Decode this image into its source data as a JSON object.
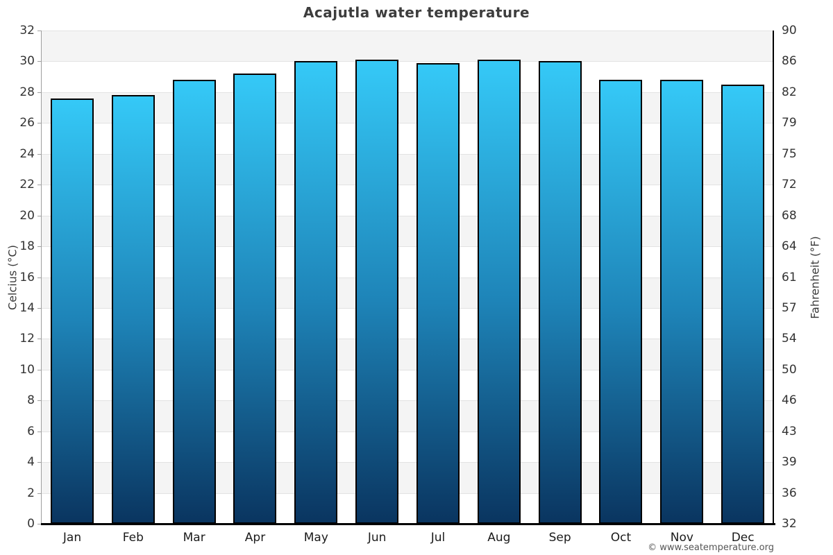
{
  "footer": "© www.seatemperature.org",
  "chart_data": {
    "type": "bar",
    "title": "Acajutla water temperature",
    "categories": [
      "Jan",
      "Feb",
      "Mar",
      "Apr",
      "May",
      "Jun",
      "Jul",
      "Aug",
      "Sep",
      "Oct",
      "Nov",
      "Dec"
    ],
    "values": [
      27.6,
      27.8,
      28.8,
      29.2,
      30.0,
      30.1,
      29.9,
      30.1,
      30.0,
      28.8,
      28.8,
      28.5
    ],
    "unit": "°C",
    "xlabel": "",
    "ylabel_left": "Celcius (°C)",
    "ylabel_right": "Fahrenheit (°F)",
    "ylim": [
      0,
      32
    ],
    "y_tick_step": 2,
    "y_ticks_celsius": [
      0,
      2,
      4,
      6,
      8,
      10,
      12,
      14,
      16,
      18,
      20,
      22,
      24,
      26,
      28,
      30,
      32
    ],
    "y_ticks_fahrenheit": [
      "32",
      "36",
      "39",
      "43",
      "46",
      "50",
      "54",
      "57",
      "61",
      "64",
      "68",
      "72",
      "75",
      "79",
      "82",
      "86",
      "90"
    ],
    "legend_position": "none",
    "grid": "alternating horizontal bands every 2°C, light gray band at 30–32",
    "colors": {
      "bar_gradient_top": "#35c9f7",
      "bar_gradient_mid": "#1e84b8",
      "bar_gradient_bottom": "#0a3560",
      "bar_border": "#000000",
      "band_gray": "#f4f4f4",
      "band_white": "#ffffff",
      "gridline": "#e2e2e2",
      "axis_left": "#9e9e9e",
      "axis_bottom": "#000000",
      "title_text": "#3d3d3d",
      "tick_text": "#333333"
    }
  }
}
